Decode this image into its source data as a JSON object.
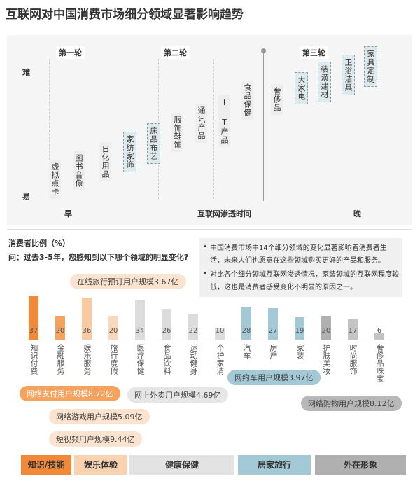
{
  "title": "互联网对中国消费市场细分领域显著影响趋势",
  "timeline": {
    "stages": [
      "第一轮",
      "第二轮",
      "第三轮"
    ],
    "y_high": "难",
    "y_low": "易",
    "x_early": "早",
    "x_label": "互联网渗透时间",
    "x_late": "晚",
    "items": [
      {
        "label": "虚拟点卡",
        "highlight": false
      },
      {
        "label": "图书音像",
        "highlight": false
      },
      {
        "label": "日化用品",
        "highlight": false
      },
      {
        "label": "家纺家饰",
        "highlight": true
      },
      {
        "label": "床品布艺",
        "highlight": true
      },
      {
        "label": "服饰鞋饰",
        "highlight": false
      },
      {
        "label": "通讯产品",
        "highlight": false
      },
      {
        "label": "I T产品",
        "highlight": false
      },
      {
        "label": "食品保健",
        "highlight": false
      },
      {
        "label": "奢侈品",
        "highlight": false
      },
      {
        "label": "大家电",
        "highlight": true
      },
      {
        "label": "装潢建材",
        "highlight": true
      },
      {
        "label": "卫浴洁具",
        "highlight": true
      },
      {
        "label": "家具定制",
        "highlight": true
      }
    ]
  },
  "chart_data": {
    "type": "bar",
    "title": "消费者比例（%）",
    "subtitle": "问：过去3-5年，您感知到以下哪个领域的明显变化?",
    "categories": [
      "知识付费",
      "金融服务",
      "娱乐服务",
      "旅行度假",
      "医疗保健",
      "食品饮料",
      "运动健身",
      "个护家清",
      "汽车",
      "房产",
      "家装",
      "护肤美妆",
      "时尚服饰",
      "奢侈品珠宝"
    ],
    "values": [
      37,
      20,
      36,
      20,
      34,
      26,
      22,
      10,
      28,
      27,
      19,
      20,
      17,
      6
    ],
    "colors": [
      "#f08a3a",
      "#f4a25e",
      "#f9c9a0",
      "#fbd8bc",
      "#dcdcdc",
      "#dcdcdc",
      "#dcdcdc",
      "#dcdcdc",
      "#a3c8d6",
      "#a3c8d6",
      "#a3c8d6",
      "#b0b0b0",
      "#c4c4c4",
      "#c4c4c4"
    ]
  },
  "notes": [
    "中国消费市场中14个细分领域的变化显著影响着消费者生活，未来人们也愿意在这些领域购买更好的产品和服务。",
    "对比各个细分领域互联网渗透情况，家装领域的互联网程度较低，这也是消费者感受变化不明显的原因之一。"
  ],
  "callouts": [
    {
      "text": "在线旅行预订用户规模3.67亿",
      "color": "#fbe3cf"
    },
    {
      "text": "网约车用户规模3.97亿",
      "color": "#a3c8d6"
    },
    {
      "text": "网络支付用户规模8.72亿",
      "color": "#f4a25e"
    },
    {
      "text": "网上外卖用户规模4.69亿",
      "color": "#e6e6e6"
    },
    {
      "text": "网络购物用户规模8.12亿",
      "color": "#b8b8b8"
    },
    {
      "text": "网络游戏用户规模5.09亿",
      "color": "#fbe3cf"
    },
    {
      "text": "短视频用户规模9.44亿",
      "color": "#fbe3cf"
    }
  ],
  "groups": [
    {
      "label": "知识/技能",
      "color": "#f08a3a"
    },
    {
      "label": "娱乐体验",
      "color": "#fbd2b0"
    },
    {
      "label": "健康保健",
      "color": "#e3e3e3"
    },
    {
      "label": "居家旅行",
      "color": "#a3c8d6"
    },
    {
      "label": "外在形象",
      "color": "#b0b0b0"
    }
  ]
}
